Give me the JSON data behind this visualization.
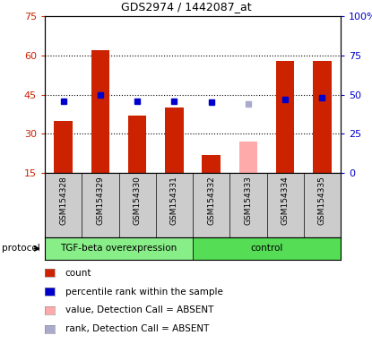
{
  "title": "GDS2974 / 1442087_at",
  "samples": [
    "GSM154328",
    "GSM154329",
    "GSM154330",
    "GSM154331",
    "GSM154332",
    "GSM154333",
    "GSM154334",
    "GSM154335"
  ],
  "count_values": [
    35,
    62,
    37,
    40,
    22,
    null,
    58,
    58
  ],
  "count_absent_values": [
    null,
    null,
    null,
    null,
    null,
    27,
    null,
    null
  ],
  "percentile_values": [
    46,
    50,
    46,
    46,
    45,
    null,
    47,
    48
  ],
  "percentile_absent_values": [
    null,
    null,
    null,
    null,
    null,
    44,
    null,
    null
  ],
  "count_color": "#cc2200",
  "count_absent_color": "#ffaaaa",
  "percentile_color": "#0000cc",
  "percentile_absent_color": "#aaaacc",
  "ylim_left": [
    15,
    75
  ],
  "ylim_right": [
    0,
    100
  ],
  "yticks_left": [
    15,
    30,
    45,
    60,
    75
  ],
  "yticks_right": [
    0,
    25,
    50,
    75,
    100
  ],
  "ytick_labels_right": [
    "0",
    "25",
    "50",
    "75",
    "100%"
  ],
  "groups": [
    {
      "label": "TGF-beta overexpression",
      "start": 0,
      "end": 4,
      "color": "#88ee88"
    },
    {
      "label": "control",
      "start": 4,
      "end": 8,
      "color": "#55dd55"
    }
  ],
  "protocol_label": "protocol",
  "bg_color": "#cccccc",
  "plot_bg": "#ffffff",
  "legend_items": [
    {
      "color": "#cc2200",
      "label": "count"
    },
    {
      "color": "#0000cc",
      "label": "percentile rank within the sample"
    },
    {
      "color": "#ffaaaa",
      "label": "value, Detection Call = ABSENT"
    },
    {
      "color": "#aaaacc",
      "label": "rank, Detection Call = ABSENT"
    }
  ],
  "bar_width": 0.5,
  "marker_size": 4.5
}
